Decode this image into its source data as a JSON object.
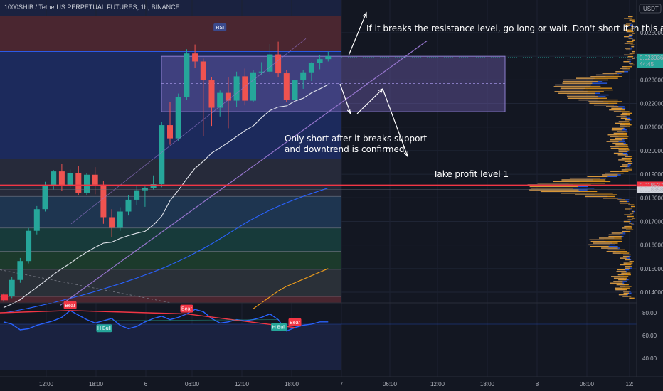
{
  "header": {
    "title": "1000SHIB / TetherUS PERPETUAL FUTURES, 1h, BINANCE"
  },
  "notes": {
    "resistance": "If it breaks the resistance level, go long or wait. Don't short it in this area.",
    "support_line1": "Only short after it breaks support",
    "support_line2": "and downtrend is confirmed",
    "take_profit": "Take profit level 1"
  },
  "price_axis": {
    "currency": "USDT",
    "ticks": [
      "0.025000",
      "0.024000",
      "0.023000",
      "0.022000",
      "0.021000",
      "0.020000",
      "0.019000",
      "0.018000",
      "0.017000",
      "0.016000",
      "0.015000",
      "0.014000"
    ],
    "last_price": "0.023936",
    "countdown": "44:45",
    "red_level": "0.018537",
    "grey_level": "0.018358"
  },
  "time_axis": {
    "ticks": [
      "12:00",
      "18:00",
      "6",
      "06:00",
      "12:00",
      "18:00",
      "7",
      "06:00",
      "12:00",
      "18:00",
      "8",
      "06:00",
      "12:"
    ]
  },
  "rsi_axis": {
    "ticks": [
      "80.00",
      "60.00",
      "40.00"
    ]
  },
  "labels": {
    "rsi_tag": "RSI",
    "bear": "Bear",
    "hbull": "H Bull"
  },
  "colors": {
    "background": "#131722",
    "up": "#26a69a",
    "down": "#ef5350",
    "resistance_box": "#6a5aa8",
    "rsi_line": "#2962ff",
    "ma_white": "#e0e3eb",
    "ma_blue": "#2962ff",
    "ma_orange": "#f7a21b",
    "vp_orange": "#f7a21b",
    "vp_blue": "#2962ff"
  },
  "chart_data": {
    "type": "candlestick",
    "timeframe": "1h",
    "symbol": "1000SHIB/USDT",
    "ylim": [
      0.0137,
      0.0257
    ],
    "candles": [
      {
        "o": 0.0137,
        "h": 0.01395,
        "l": 0.0136,
        "c": 0.01383
      },
      {
        "o": 0.01383,
        "h": 0.01465,
        "l": 0.01375,
        "c": 0.01452
      },
      {
        "o": 0.01452,
        "h": 0.01545,
        "l": 0.0144,
        "c": 0.01532
      },
      {
        "o": 0.01532,
        "h": 0.01672,
        "l": 0.01522,
        "c": 0.0166
      },
      {
        "o": 0.0166,
        "h": 0.01765,
        "l": 0.01645,
        "c": 0.01752
      },
      {
        "o": 0.01752,
        "h": 0.01868,
        "l": 0.01742,
        "c": 0.01852
      },
      {
        "o": 0.01852,
        "h": 0.01918,
        "l": 0.01835,
        "c": 0.01912
      },
      {
        "o": 0.01912,
        "h": 0.01945,
        "l": 0.0183,
        "c": 0.01852
      },
      {
        "o": 0.01852,
        "h": 0.0192,
        "l": 0.0184,
        "c": 0.01905
      },
      {
        "o": 0.01905,
        "h": 0.01935,
        "l": 0.01812,
        "c": 0.01822
      },
      {
        "o": 0.01822,
        "h": 0.01905,
        "l": 0.0181,
        "c": 0.01898
      },
      {
        "o": 0.01898,
        "h": 0.0193,
        "l": 0.01815,
        "c": 0.01856
      },
      {
        "o": 0.01856,
        "h": 0.0187,
        "l": 0.0169,
        "c": 0.01718
      },
      {
        "o": 0.01718,
        "h": 0.01752,
        "l": 0.01635,
        "c": 0.01673
      },
      {
        "o": 0.01673,
        "h": 0.0176,
        "l": 0.0166,
        "c": 0.01742
      },
      {
        "o": 0.01742,
        "h": 0.01812,
        "l": 0.01725,
        "c": 0.01792
      },
      {
        "o": 0.01792,
        "h": 0.01852,
        "l": 0.0177,
        "c": 0.01832
      },
      {
        "o": 0.01832,
        "h": 0.01848,
        "l": 0.01762,
        "c": 0.01842
      },
      {
        "o": 0.01842,
        "h": 0.01895,
        "l": 0.01835,
        "c": 0.01858
      },
      {
        "o": 0.01858,
        "h": 0.02122,
        "l": 0.01845,
        "c": 0.02108
      },
      {
        "o": 0.02108,
        "h": 0.02205,
        "l": 0.02025,
        "c": 0.02052
      },
      {
        "o": 0.02052,
        "h": 0.02242,
        "l": 0.0204,
        "c": 0.02228
      },
      {
        "o": 0.02228,
        "h": 0.0243,
        "l": 0.02215,
        "c": 0.02412
      },
      {
        "o": 0.02412,
        "h": 0.0245,
        "l": 0.0235,
        "c": 0.02378
      },
      {
        "o": 0.02378,
        "h": 0.0239,
        "l": 0.0206,
        "c": 0.02298
      },
      {
        "o": 0.02298,
        "h": 0.0231,
        "l": 0.02105,
        "c": 0.02182
      },
      {
        "o": 0.02182,
        "h": 0.02255,
        "l": 0.02145,
        "c": 0.02245
      },
      {
        "o": 0.02245,
        "h": 0.0231,
        "l": 0.02095,
        "c": 0.02212
      },
      {
        "o": 0.02212,
        "h": 0.02335,
        "l": 0.02185,
        "c": 0.02315
      },
      {
        "o": 0.02315,
        "h": 0.02348,
        "l": 0.02192,
        "c": 0.02212
      },
      {
        "o": 0.02212,
        "h": 0.02342,
        "l": 0.02205,
        "c": 0.02332
      },
      {
        "o": 0.02332,
        "h": 0.02375,
        "l": 0.0232,
        "c": 0.02335
      },
      {
        "o": 0.02335,
        "h": 0.02452,
        "l": 0.02325,
        "c": 0.02408
      },
      {
        "o": 0.02408,
        "h": 0.02462,
        "l": 0.0231,
        "c": 0.02328
      },
      {
        "o": 0.02328,
        "h": 0.02342,
        "l": 0.02205,
        "c": 0.02215
      },
      {
        "o": 0.02215,
        "h": 0.02312,
        "l": 0.02205,
        "c": 0.02298
      },
      {
        "o": 0.02298,
        "h": 0.02342,
        "l": 0.02262,
        "c": 0.02332
      },
      {
        "o": 0.02332,
        "h": 0.02375,
        "l": 0.02295,
        "c": 0.02372
      },
      {
        "o": 0.02372,
        "h": 0.02405,
        "l": 0.02345,
        "c": 0.02388
      },
      {
        "o": 0.02388,
        "h": 0.0242,
        "l": 0.02378,
        "c": 0.024
      }
    ],
    "ma_white": [
      0.01335,
      0.0135,
      0.01368,
      0.01395,
      0.0142,
      0.01448,
      0.01475,
      0.015,
      0.01522,
      0.01548,
      0.0157,
      0.0159,
      0.01608,
      0.01612,
      0.01628,
      0.0164,
      0.0165,
      0.01658,
      0.01685,
      0.01722,
      0.01788,
      0.01832,
      0.0188,
      0.01925,
      0.01955,
      0.0199,
      0.02012,
      0.02035,
      0.0206,
      0.02085,
      0.02105,
      0.0214,
      0.0217,
      0.02185,
      0.0219,
      0.0221,
      0.02222,
      0.02245,
      0.02262,
      0.0228
    ],
    "ma_blue": [
      0.01312,
      0.01318,
      0.01325,
      0.01332,
      0.0134,
      0.01348,
      0.01356,
      0.01365,
      0.01374,
      0.01383,
      0.01393,
      0.01403,
      0.01414,
      0.01425,
      0.01436,
      0.01448,
      0.0146,
      0.01473,
      0.01486,
      0.015,
      0.01515,
      0.01531,
      0.01548,
      0.01566,
      0.01585,
      0.01605,
      0.01626,
      0.01648,
      0.0167,
      0.01692,
      0.01712,
      0.0173,
      0.01748,
      0.01764,
      0.01779,
      0.01793,
      0.01806,
      0.01818,
      0.0183,
      0.01842
    ],
    "ma_orange": [
      null,
      null,
      null,
      null,
      null,
      null,
      null,
      null,
      null,
      null,
      null,
      null,
      null,
      null,
      null,
      null,
      null,
      null,
      null,
      null,
      null,
      null,
      null,
      null,
      null,
      null,
      null,
      null,
      null,
      null,
      0.0133,
      0.01355,
      0.0138,
      0.01405,
      0.01425,
      0.0144,
      0.01455,
      0.0147,
      0.01485,
      0.015
    ],
    "rsi": {
      "ylim": [
        30,
        90
      ],
      "values": [
        72,
        70,
        65,
        66,
        69,
        71,
        73,
        76,
        82,
        78,
        74,
        71,
        73,
        75,
        69,
        66,
        68,
        72,
        75,
        77,
        74,
        76,
        79,
        83,
        81,
        75,
        71,
        72,
        74,
        73,
        74,
        76,
        79,
        74,
        64,
        67,
        69,
        70,
        72,
        72
      ],
      "bear_divergence": [
        8,
        22,
        35
      ],
      "bull_divergence": [
        12,
        33
      ]
    },
    "levels": {
      "resistance_top": 0.024,
      "resistance_mid": 0.02285,
      "resistance_bottom": 0.02165,
      "take_profit_1": 0.018537,
      "fib_levels": [
        0.01965,
        0.01806,
        0.01672,
        0.01573,
        0.01497,
        0.01382
      ]
    }
  }
}
